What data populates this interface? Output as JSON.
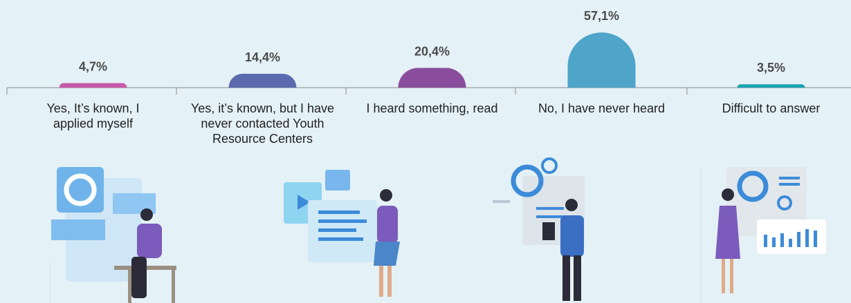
{
  "chart_data": {
    "type": "bar",
    "categories": [
      "Yes, It’s known, I applied myself",
      "Yes, it’s known, but I have never contacted Youth Resource Centers",
      "I heard something, read",
      "No, I have never heard",
      "Difficult to answer"
    ],
    "values": [
      4.7,
      14.4,
      20.4,
      57.1,
      3.5
    ],
    "value_labels": [
      "4,7%",
      "14,4%",
      "20,4%",
      "57,1%",
      "3,5%"
    ],
    "colors": [
      "#c65aa9",
      "#5b69ae",
      "#8a4d9d",
      "#4ea4c9",
      "#19a4b1"
    ]
  }
}
